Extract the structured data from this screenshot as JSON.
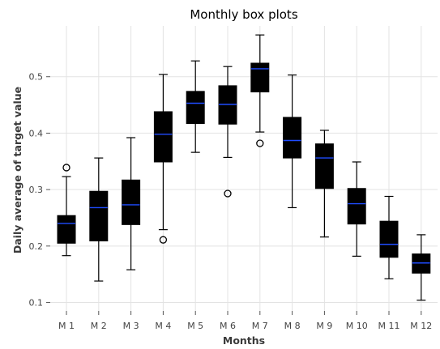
{
  "chart_data": {
    "type": "box",
    "title": "Monthly box plots",
    "xlabel": "Months",
    "ylabel": "Daily average of target value",
    "ylim": [
      0.085,
      0.59
    ],
    "yticks": [
      0.1,
      0.2,
      0.3,
      0.4,
      0.5
    ],
    "ytick_labels": [
      "0.1",
      "0.2",
      "0.3",
      "0.4",
      "0.5"
    ],
    "grid": true,
    "box_color": "#000000",
    "median_color": "#1f4cff",
    "categories": [
      "M 1",
      "M 2",
      "M 3",
      "M 4",
      "M 5",
      "M 6",
      "M 7",
      "M 8",
      "M 9",
      "M 10",
      "M 11",
      "M 12"
    ],
    "boxes": [
      {
        "category": "M 1",
        "whisker_low": 0.183,
        "q1": 0.205,
        "median": 0.24,
        "q3": 0.254,
        "whisker_high": 0.323,
        "fliers": [
          0.339
        ]
      },
      {
        "category": "M 2",
        "whisker_low": 0.138,
        "q1": 0.209,
        "median": 0.268,
        "q3": 0.297,
        "whisker_high": 0.356,
        "fliers": []
      },
      {
        "category": "M 3",
        "whisker_low": 0.158,
        "q1": 0.238,
        "median": 0.273,
        "q3": 0.317,
        "whisker_high": 0.392,
        "fliers": []
      },
      {
        "category": "M 4",
        "whisker_low": 0.229,
        "q1": 0.349,
        "median": 0.398,
        "q3": 0.438,
        "whisker_high": 0.504,
        "fliers": [
          0.211
        ]
      },
      {
        "category": "M 5",
        "whisker_low": 0.366,
        "q1": 0.417,
        "median": 0.453,
        "q3": 0.474,
        "whisker_high": 0.528,
        "fliers": []
      },
      {
        "category": "M 6",
        "whisker_low": 0.357,
        "q1": 0.416,
        "median": 0.451,
        "q3": 0.484,
        "whisker_high": 0.518,
        "fliers": [
          0.293
        ]
      },
      {
        "category": "M 7",
        "whisker_low": 0.402,
        "q1": 0.473,
        "median": 0.514,
        "q3": 0.524,
        "whisker_high": 0.574,
        "fliers": [
          0.382
        ]
      },
      {
        "category": "M 8",
        "whisker_low": 0.268,
        "q1": 0.356,
        "median": 0.387,
        "q3": 0.428,
        "whisker_high": 0.503,
        "fliers": []
      },
      {
        "category": "M 9",
        "whisker_low": 0.216,
        "q1": 0.302,
        "median": 0.356,
        "q3": 0.381,
        "whisker_high": 0.405,
        "fliers": []
      },
      {
        "category": "M 10",
        "whisker_low": 0.182,
        "q1": 0.239,
        "median": 0.275,
        "q3": 0.302,
        "whisker_high": 0.349,
        "fliers": []
      },
      {
        "category": "M 11",
        "whisker_low": 0.142,
        "q1": 0.18,
        "median": 0.203,
        "q3": 0.244,
        "whisker_high": 0.288,
        "fliers": []
      },
      {
        "category": "M 12",
        "whisker_low": 0.104,
        "q1": 0.152,
        "median": 0.17,
        "q3": 0.186,
        "whisker_high": 0.22,
        "fliers": []
      }
    ]
  }
}
